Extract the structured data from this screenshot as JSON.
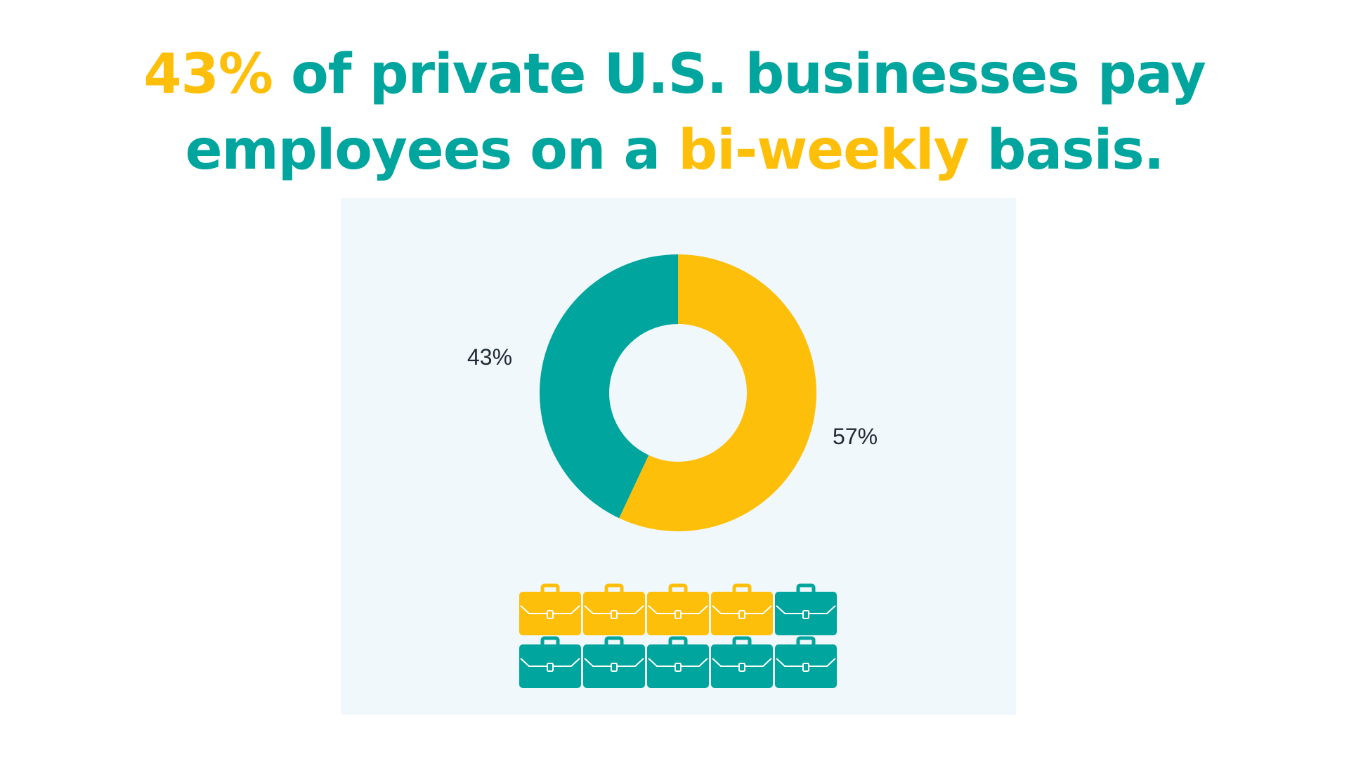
{
  "headline": {
    "part1_highlight": "43%",
    "part2": " of private U.S. businesses pay employees on a ",
    "part3_highlight": "bi-weekly",
    "part4": " basis."
  },
  "colors": {
    "teal": "#00a59e",
    "yellow": "#fdbf0a",
    "panel_bg": "#f0f8fc",
    "label_text": "#1f2a33"
  },
  "chart_data": [
    {
      "type": "pie",
      "style": "donut",
      "slices": [
        {
          "label": "43%",
          "value": 43,
          "color": "#00a59e"
        },
        {
          "label": "57%",
          "value": 57,
          "color": "#fdbf0a"
        }
      ]
    },
    {
      "type": "pictogram",
      "icon": "briefcase-icon",
      "rows": 2,
      "columns": 5,
      "highlighted_count": 4,
      "highlight_color": "#fdbf0a",
      "base_color": "#00a59e"
    }
  ]
}
